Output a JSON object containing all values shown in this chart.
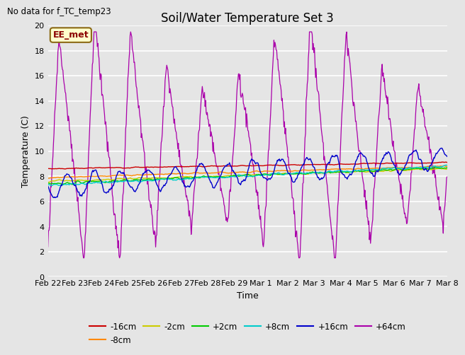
{
  "title": "Soil/Water Temperature Set 3",
  "xlabel": "Time",
  "ylabel": "Temperature (C)",
  "note": "No data for f_TC_temp23",
  "annotation": "EE_met",
  "ylim": [
    0,
    20
  ],
  "background_color": "#e5e5e5",
  "grid_color": "white",
  "legend_entries": [
    "-16cm",
    "-8cm",
    "-2cm",
    "+2cm",
    "+8cm",
    "+16cm",
    "+64cm"
  ],
  "legend_colors": [
    "#cc0000",
    "#ff8800",
    "#cccc00",
    "#00cc00",
    "#00cccc",
    "#0000cc",
    "#aa00aa"
  ],
  "xtick_labels": [
    "Feb 22",
    "Feb 23",
    "Feb 24",
    "Feb 25",
    "Feb 26",
    "Feb 27",
    "Feb 28",
    "Feb 29",
    "Mar 1",
    "Mar 2",
    "Mar 3",
    "Mar 4",
    "Mar 5",
    "Mar 6",
    "Mar 7",
    "Mar 8"
  ],
  "title_fontsize": 12,
  "label_fontsize": 9,
  "tick_fontsize": 8
}
